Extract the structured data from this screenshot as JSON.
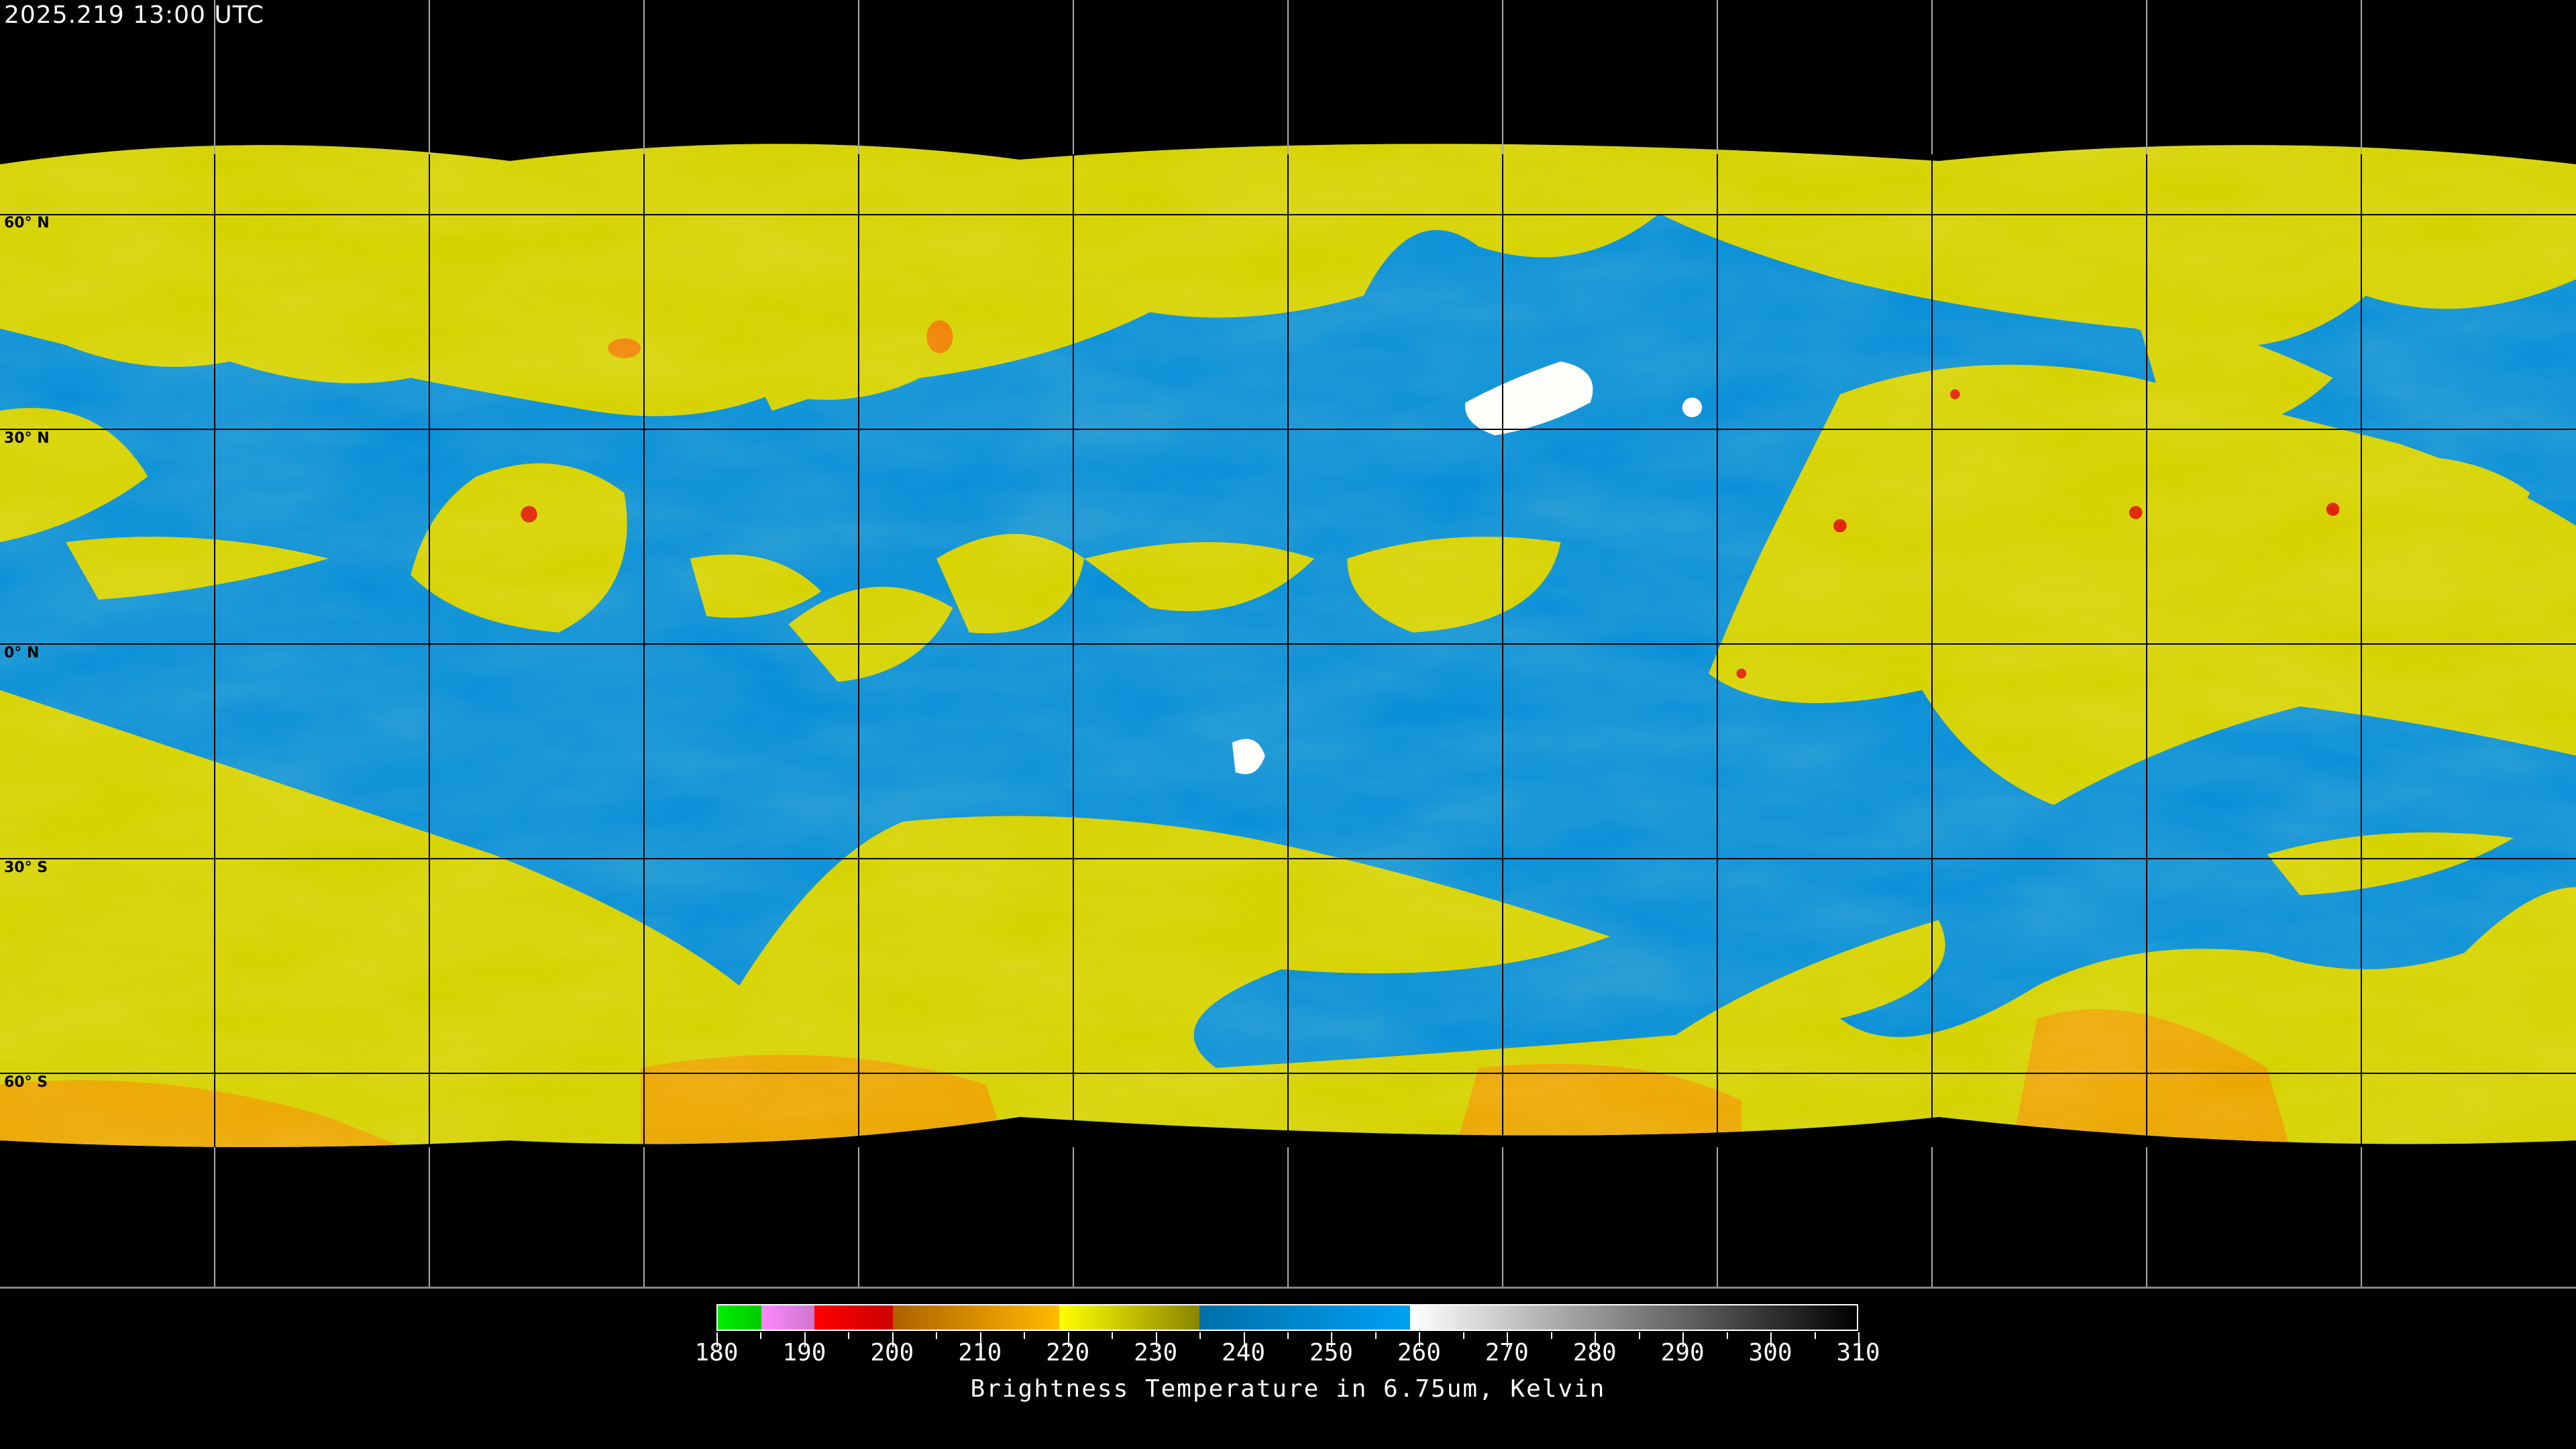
{
  "timestamp": "2025.219 13:00 UTC",
  "latitude_labels": [
    "60° N",
    "30° N",
    "0° N",
    "30° S",
    "60° S"
  ],
  "colorbar": {
    "title": "Brightness Temperature in 6.75um, Kelvin",
    "min": 180,
    "max": 310,
    "tick_labels": [
      "180",
      "190",
      "200",
      "210",
      "220",
      "230",
      "240",
      "250",
      "260",
      "270",
      "280",
      "290",
      "300",
      "310"
    ],
    "segments": [
      {
        "from": 180,
        "to": 185,
        "colors": [
          "#00ee00",
          "#00cc00"
        ]
      },
      {
        "from": 185,
        "to": 191,
        "colors": [
          "#ff88ff",
          "#cc77cc"
        ]
      },
      {
        "from": 191,
        "to": 200,
        "colors": [
          "#ff0000",
          "#cc0000"
        ]
      },
      {
        "from": 200,
        "to": 219,
        "colors": [
          "#b06000",
          "#ffbb00"
        ]
      },
      {
        "from": 219,
        "to": 235,
        "colors": [
          "#ffff00",
          "#8a8400"
        ]
      },
      {
        "from": 235,
        "to": 259,
        "colors": [
          "#006fa8",
          "#00a0f4"
        ]
      },
      {
        "from": 259,
        "to": 310,
        "colors": [
          "#ffffff",
          "#000000"
        ]
      }
    ]
  },
  "colors": {
    "background": "#000000",
    "warm_blue": "#0a90d8",
    "cloud_yellow": "#d6d200",
    "cold_orange": "#f0a000",
    "coldest_red": "#e02000",
    "hot_white": "#ffffff"
  },
  "graticule": {
    "lon_step_deg": 30,
    "lat_step_deg": 30
  }
}
